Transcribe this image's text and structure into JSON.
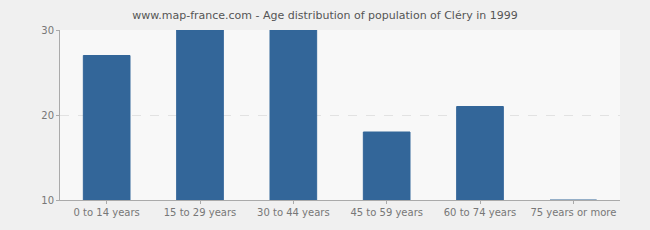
{
  "chart_data": {
    "type": "bar",
    "title": "www.map-france.com - Age distribution of population of Cléry in 1999",
    "categories": [
      "0 to 14 years",
      "15 to 29 years",
      "30 to 44 years",
      "45 to 59 years",
      "60 to 74 years",
      "75 years or more"
    ],
    "values": [
      27,
      30,
      30,
      18,
      21,
      10
    ],
    "color": "#336699",
    "ylim": [
      10,
      30
    ],
    "yticks": [
      10,
      20,
      30
    ],
    "grid": true
  }
}
